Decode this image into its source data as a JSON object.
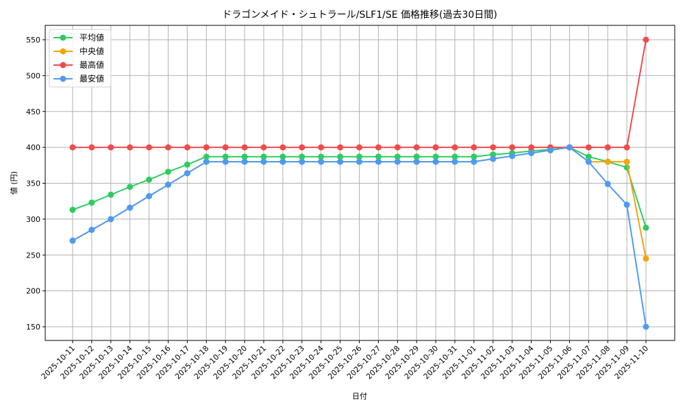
{
  "chart_data": {
    "type": "line",
    "title": "ドラゴンメイド・シュトラール/SLF1/SE 価格推移(過去30日間)",
    "xlabel": "日付",
    "ylabel": "値 (円)",
    "ylim": [
      130,
      570
    ],
    "yticks": [
      150,
      200,
      250,
      300,
      350,
      400,
      450,
      500,
      550
    ],
    "grid": true,
    "legend_position": "upper left",
    "x": [
      "2025-10-11",
      "2025-10-12",
      "2025-10-13",
      "2025-10-14",
      "2025-10-15",
      "2025-10-16",
      "2025-10-17",
      "2025-10-18",
      "2025-10-19",
      "2025-10-20",
      "2025-10-21",
      "2025-10-22",
      "2025-10-23",
      "2025-10-24",
      "2025-10-25",
      "2025-10-26",
      "2025-10-27",
      "2025-10-28",
      "2025-10-29",
      "2025-10-30",
      "2025-10-31",
      "2025-11-01",
      "2025-11-02",
      "2025-11-03",
      "2025-11-04",
      "2025-11-05",
      "2025-11-06",
      "2025-11-07",
      "2025-11-08",
      "2025-11-09",
      "2025-11-10"
    ],
    "series": [
      {
        "name": "平均値",
        "color": "#2ecc5f",
        "values": [
          313,
          323,
          334,
          345,
          355,
          366,
          376,
          387,
          387,
          387,
          387,
          387,
          387,
          387,
          387,
          387,
          387,
          387,
          387,
          387,
          387,
          387,
          390,
          392,
          395,
          397,
          400,
          387,
          380,
          372,
          288
        ]
      },
      {
        "name": "中央値",
        "color": "#f5a30a",
        "values": [
          270,
          285,
          300,
          316,
          332,
          348,
          364,
          380,
          380,
          380,
          380,
          380,
          380,
          380,
          380,
          380,
          380,
          380,
          380,
          380,
          380,
          380,
          384,
          388,
          392,
          396,
          400,
          380,
          380,
          380,
          245
        ]
      },
      {
        "name": "最高値",
        "color": "#f04a4a",
        "values": [
          400,
          400,
          400,
          400,
          400,
          400,
          400,
          400,
          400,
          400,
          400,
          400,
          400,
          400,
          400,
          400,
          400,
          400,
          400,
          400,
          400,
          400,
          400,
          400,
          400,
          400,
          400,
          400,
          400,
          400,
          550
        ]
      },
      {
        "name": "最安値",
        "color": "#4d9bf5",
        "values": [
          270,
          285,
          300,
          316,
          332,
          348,
          364,
          380,
          380,
          380,
          380,
          380,
          380,
          380,
          380,
          380,
          380,
          380,
          380,
          380,
          380,
          380,
          384,
          388,
          392,
          396,
          400,
          380,
          349,
          320,
          150
        ]
      }
    ]
  }
}
